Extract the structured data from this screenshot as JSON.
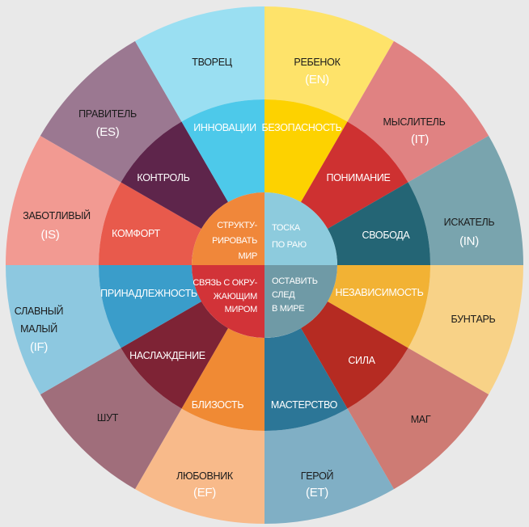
{
  "outer_ring": [
    {
      "label": "РЕБЕНОК",
      "code": "(EN)",
      "color": "#FEE36A"
    },
    {
      "label": "МЫСЛИТЕЛЬ",
      "code": "(IT)",
      "color": "#E08282"
    },
    {
      "label": "ИСКАТЕЛЬ",
      "code": "(IN)",
      "color": "#79A4AE"
    },
    {
      "label": "БУНТАРЬ",
      "code": "",
      "color": "#F8D287"
    },
    {
      "label": "МАГ",
      "code": "",
      "color": "#CE7B74"
    },
    {
      "label": "ГЕРОЙ",
      "code": "(ET)",
      "color": "#80AFC5"
    },
    {
      "label": "ЛЮБОВНИК",
      "code": "(EF)",
      "color": "#F8BA8A"
    },
    {
      "label": "ШУТ",
      "code": "",
      "color": "#A06E7B"
    },
    {
      "label": "СЛАВНЫЙ",
      "label2": "МАЛЫЙ",
      "code": "(IF)",
      "color": "#8DC8E0"
    },
    {
      "label": "ЗАБОТЛИВЫЙ",
      "code": "(IS)",
      "color": "#F29A92"
    },
    {
      "label": "ПРАВИТЕЛЬ",
      "code": "(ES)",
      "color": "#9B7891"
    },
    {
      "label": "ТВОРЕЦ",
      "code": "",
      "color": "#9ADFF2"
    }
  ],
  "middle_ring": [
    {
      "label": "БЕЗОПАСНОСТЬ",
      "color": "#FDD200"
    },
    {
      "label": "ПОНИМАНИЕ",
      "color": "#CE3131"
    },
    {
      "label": "СВОБОДА",
      "color": "#246575"
    },
    {
      "label": "НЕЗАВИСИМОСТЬ",
      "color": "#F2B234"
    },
    {
      "label": "СИЛА",
      "color": "#B52B22"
    },
    {
      "label": "МАСТЕРСТВО",
      "color": "#2C7697"
    },
    {
      "label": "БЛИЗОСТЬ",
      "color": "#F08A34"
    },
    {
      "label": "НАСЛАЖДЕНИЕ",
      "color": "#7E2335"
    },
    {
      "label": "ПРИНАДЛЕЖНОСТЬ",
      "color": "#3A9DCA"
    },
    {
      "label": "КОМФОРТ",
      "color": "#E85A4C"
    },
    {
      "label": "КОНТРОЛЬ",
      "color": "#5E254B"
    },
    {
      "label": "ИННОВАЦИИ",
      "color": "#4DC9EA"
    }
  ],
  "center": [
    {
      "lines": [
        "ТОСКА",
        "ПО РАЮ"
      ],
      "color": "#8DCBDD"
    },
    {
      "lines": [
        "ОСТАВИТЬ",
        "СЛЕД",
        "В МИРЕ"
      ],
      "color": "#6F9AA6"
    },
    {
      "lines": [
        "СВЯЗЬ С ОКРУ-",
        "ЖАЮЩИМ",
        "МИРОМ"
      ],
      "color": "#D23338"
    },
    {
      "lines": [
        "СТРУКТУ-",
        "РИРОВАТЬ",
        "МИР"
      ],
      "color": "#F0873A"
    }
  ]
}
